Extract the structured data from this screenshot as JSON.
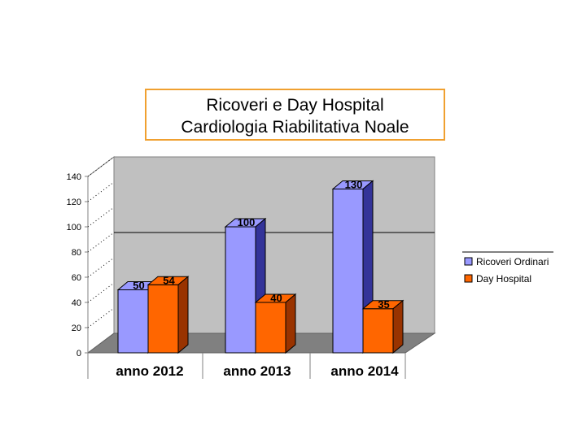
{
  "chart_data": {
    "type": "bar",
    "title_lines": [
      "Ricoveri e Day Hospital",
      "Cardiologia Riabilitativa Noale"
    ],
    "categories": [
      "anno 2012",
      "anno 2013",
      "anno 2014"
    ],
    "series": [
      {
        "name": "Ricoveri Ordinari",
        "values": [
          50,
          100,
          130
        ],
        "color": "#9999ff",
        "side": "#333399"
      },
      {
        "name": "Day Hospital",
        "values": [
          54,
          40,
          35
        ],
        "color": "#ff6600",
        "side": "#993300"
      }
    ],
    "yticks": [
      "0",
      "20",
      "40",
      "60",
      "80",
      "100",
      "120",
      "140"
    ],
    "ylim": [
      0,
      140
    ],
    "xlabel": "",
    "ylabel": "",
    "legend_position": "right"
  }
}
